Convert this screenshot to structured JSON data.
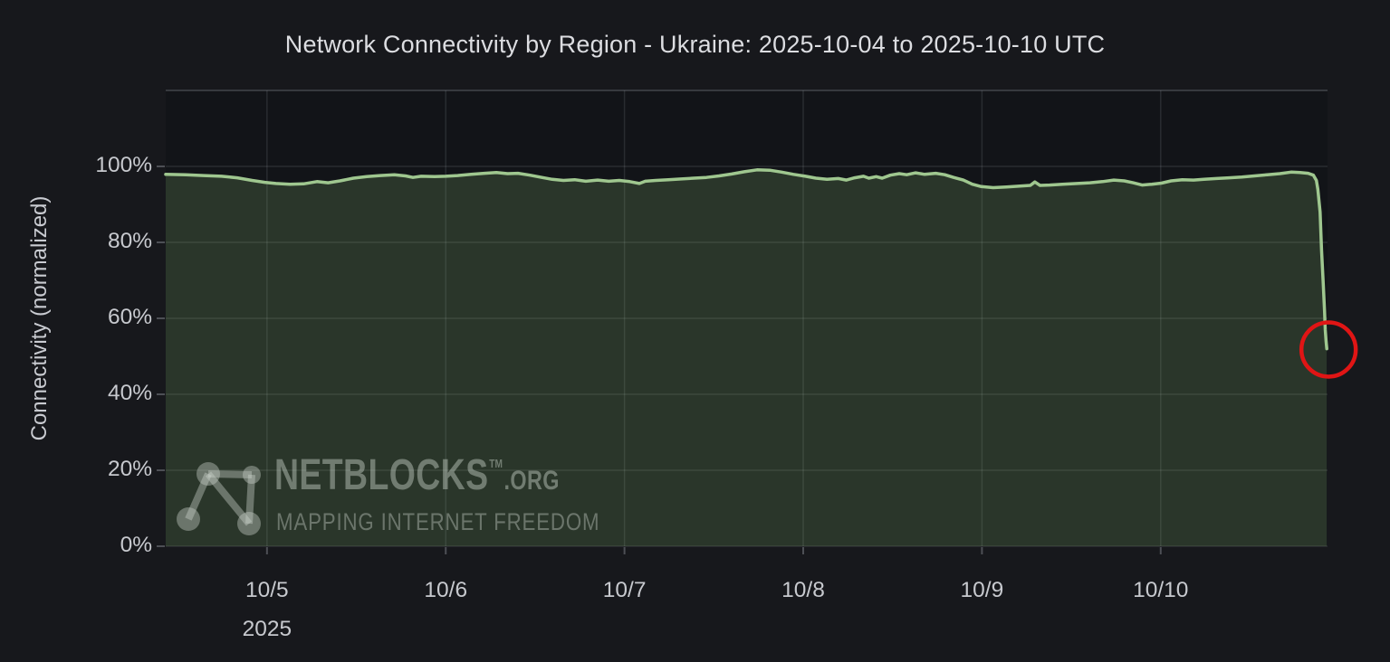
{
  "title": "Network Connectivity by Region - Ukraine: 2025-10-04 to 2025-10-10 UTC",
  "watermark": {
    "brand": "NETBLOCKS",
    "tm": "TM",
    "suffix": ".ORG",
    "tagline": "MAPPING INTERNET FREEDOM"
  },
  "colors": {
    "background": "#17181c",
    "plot_background": "#121418",
    "line": "#9fc78f",
    "area_fill": "rgba(141,191,113,0.20)",
    "grid": "rgba(201,209,217,0.13)",
    "plot_top_border": "rgba(201,209,217,0.22)",
    "tick_mark": "rgba(201,209,217,0.30)",
    "text": "#c7c9ce",
    "annotation_red": "#e01515"
  },
  "chart_data": {
    "type": "area",
    "title": "Network Connectivity by Region - Ukraine: 2025-10-04 to 2025-10-10 UTC",
    "xlabel": "",
    "ylabel": "Connectivity (normalized)",
    "x_unit": "hours from chart start (span 2025-10-04 to 2025-10-10 UTC)",
    "xlim": [
      0,
      156
    ],
    "ylim": [
      0,
      120
    ],
    "grid": true,
    "legend": "none",
    "y_ticks": [
      {
        "v": 0,
        "label": "0%"
      },
      {
        "v": 20,
        "label": "20%"
      },
      {
        "v": 40,
        "label": "40%"
      },
      {
        "v": 60,
        "label": "60%"
      },
      {
        "v": 80,
        "label": "80%"
      },
      {
        "v": 100,
        "label": "100%"
      }
    ],
    "x_ticks": [
      {
        "t": 13.6,
        "label": "10/5",
        "sublabel": "2025"
      },
      {
        "t": 37.6,
        "label": "10/6"
      },
      {
        "t": 61.6,
        "label": "10/7"
      },
      {
        "t": 85.6,
        "label": "10/8"
      },
      {
        "t": 109.6,
        "label": "10/9"
      },
      {
        "t": 133.6,
        "label": "10/10"
      }
    ],
    "series": [
      {
        "name": "Connectivity (normalized)",
        "points": [
          [
            0,
            97.9
          ],
          [
            2.7,
            97.8
          ],
          [
            5.1,
            97.6
          ],
          [
            7.5,
            97.4
          ],
          [
            9.6,
            97.0
          ],
          [
            11.6,
            96.3
          ],
          [
            13.3,
            95.8
          ],
          [
            14.8,
            95.5
          ],
          [
            16.7,
            95.3
          ],
          [
            18.5,
            95.4
          ],
          [
            20.3,
            96.0
          ],
          [
            21.8,
            95.7
          ],
          [
            23.4,
            96.2
          ],
          [
            25.2,
            96.9
          ],
          [
            27,
            97.3
          ],
          [
            28.8,
            97.6
          ],
          [
            30.7,
            97.8
          ],
          [
            32.2,
            97.5
          ],
          [
            33.2,
            97.1
          ],
          [
            34.3,
            97.4
          ],
          [
            36.1,
            97.3
          ],
          [
            37.6,
            97.4
          ],
          [
            39.2,
            97.6
          ],
          [
            41,
            97.9
          ],
          [
            42.8,
            98.2
          ],
          [
            44.4,
            98.4
          ],
          [
            45.9,
            98.1
          ],
          [
            47.3,
            98.2
          ],
          [
            48.9,
            97.7
          ],
          [
            50.5,
            97.1
          ],
          [
            51.9,
            96.6
          ],
          [
            53.4,
            96.3
          ],
          [
            54.9,
            96.5
          ],
          [
            56.4,
            96.1
          ],
          [
            58,
            96.4
          ],
          [
            59.5,
            96.1
          ],
          [
            60.9,
            96.3
          ],
          [
            62.3,
            96.0
          ],
          [
            63.6,
            95.5
          ],
          [
            64.4,
            96.1
          ],
          [
            65.8,
            96.3
          ],
          [
            67.5,
            96.5
          ],
          [
            69.2,
            96.7
          ],
          [
            70.9,
            96.9
          ],
          [
            72.6,
            97.1
          ],
          [
            74.3,
            97.5
          ],
          [
            76,
            98.0
          ],
          [
            77.7,
            98.6
          ],
          [
            79.4,
            99.1
          ],
          [
            81.1,
            99.0
          ],
          [
            82.7,
            98.5
          ],
          [
            84.3,
            97.9
          ],
          [
            85.9,
            97.4
          ],
          [
            87.3,
            96.9
          ],
          [
            88.8,
            96.6
          ],
          [
            90.3,
            96.8
          ],
          [
            91.4,
            96.4
          ],
          [
            92.5,
            97.0
          ],
          [
            93.7,
            97.4
          ],
          [
            94.4,
            96.9
          ],
          [
            95.4,
            97.3
          ],
          [
            96.2,
            96.9
          ],
          [
            97.3,
            97.7
          ],
          [
            98.5,
            98.1
          ],
          [
            99.5,
            97.8
          ],
          [
            100.7,
            98.3
          ],
          [
            101.9,
            97.9
          ],
          [
            103.4,
            98.2
          ],
          [
            104.6,
            97.8
          ],
          [
            105.8,
            97.1
          ],
          [
            107.1,
            96.4
          ],
          [
            108.3,
            95.3
          ],
          [
            109.5,
            94.7
          ],
          [
            111.1,
            94.4
          ],
          [
            112.9,
            94.6
          ],
          [
            114.7,
            94.8
          ],
          [
            116.1,
            95.0
          ],
          [
            116.7,
            95.9
          ],
          [
            117.4,
            95.0
          ],
          [
            118.7,
            95.1
          ],
          [
            120.4,
            95.3
          ],
          [
            122.4,
            95.5
          ],
          [
            124.1,
            95.7
          ],
          [
            125.8,
            96.0
          ],
          [
            127.3,
            96.4
          ],
          [
            128.7,
            96.2
          ],
          [
            129.9,
            95.7
          ],
          [
            131.1,
            95.1
          ],
          [
            132.4,
            95.3
          ],
          [
            133.7,
            95.6
          ],
          [
            135,
            96.2
          ],
          [
            136.5,
            96.5
          ],
          [
            138,
            96.4
          ],
          [
            139.4,
            96.6
          ],
          [
            141.1,
            96.8
          ],
          [
            142.8,
            97.0
          ],
          [
            144.5,
            97.2
          ],
          [
            146.2,
            97.5
          ],
          [
            147.9,
            97.8
          ],
          [
            149.6,
            98.1
          ],
          [
            151.1,
            98.5
          ],
          [
            152.3,
            98.4
          ],
          [
            153.4,
            98.2
          ],
          [
            154.1,
            97.7
          ],
          [
            154.5,
            96.3
          ],
          [
            154.7,
            94.0
          ],
          [
            155,
            88.0
          ],
          [
            155.2,
            78.0
          ],
          [
            155.4,
            70.0
          ],
          [
            155.6,
            62.0
          ],
          [
            155.7,
            57.0
          ],
          [
            155.8,
            54.0
          ],
          [
            155.9,
            52.0
          ]
        ]
      }
    ],
    "annotation_circle": {
      "t": 155.9,
      "v": 51.8,
      "radius_px": 30
    }
  }
}
